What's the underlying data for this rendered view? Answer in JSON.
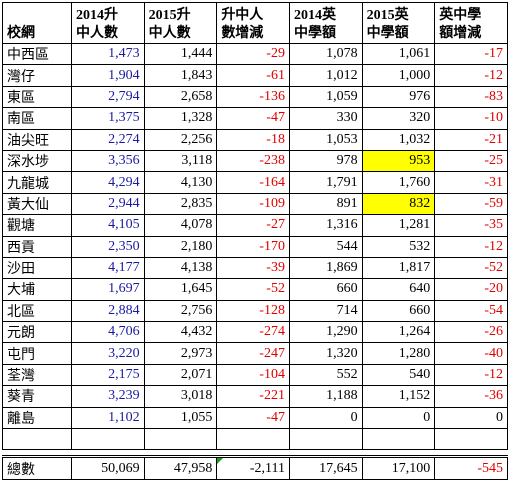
{
  "table": {
    "header": [
      [
        "校網"
      ],
      [
        "2014升",
        "中人數"
      ],
      [
        "2015升",
        "中人數"
      ],
      [
        "升中人",
        "數增減"
      ],
      [
        "2014英",
        "中學額"
      ],
      [
        "2015英",
        "中學額"
      ],
      [
        "英中學",
        "額增減"
      ]
    ],
    "rows": [
      [
        "中西區",
        "1,473",
        "1,444",
        "-29",
        "1,078",
        "1,061",
        "-17"
      ],
      [
        "灣仔",
        "1,904",
        "1,843",
        "-61",
        "1,012",
        "1,000",
        "-12"
      ],
      [
        "東區",
        "2,794",
        "2,658",
        "-136",
        "1,059",
        "976",
        "-83"
      ],
      [
        "南區",
        "1,375",
        "1,328",
        "-47",
        "330",
        "320",
        "-10"
      ],
      [
        "油尖旺",
        "2,274",
        "2,256",
        "-18",
        "1,053",
        "1,032",
        "-21"
      ],
      [
        "深水埗",
        "3,356",
        "3,118",
        "-238",
        "978",
        "953",
        "-25"
      ],
      [
        "九龍城",
        "4,294",
        "4,130",
        "-164",
        "1,791",
        "1,760",
        "-31"
      ],
      [
        "黃大仙",
        "2,944",
        "2,835",
        "-109",
        "891",
        "832",
        "-59"
      ],
      [
        "觀塘",
        "4,105",
        "4,078",
        "-27",
        "1,316",
        "1,281",
        "-35"
      ],
      [
        "西貢",
        "2,350",
        "2,180",
        "-170",
        "544",
        "532",
        "-12"
      ],
      [
        "沙田",
        "4,177",
        "4,138",
        "-39",
        "1,869",
        "1,817",
        "-52"
      ],
      [
        "大埔",
        "1,697",
        "1,645",
        "-52",
        "660",
        "640",
        "-20"
      ],
      [
        "北區",
        "2,884",
        "2,756",
        "-128",
        "714",
        "660",
        "-54"
      ],
      [
        "元朗",
        "4,706",
        "4,432",
        "-274",
        "1,290",
        "1,264",
        "-26"
      ],
      [
        "屯門",
        "3,220",
        "2,973",
        "-247",
        "1,320",
        "1,280",
        "-40"
      ],
      [
        "荃灣",
        "2,175",
        "2,071",
        "-104",
        "552",
        "540",
        "-12"
      ],
      [
        "葵青",
        "3,239",
        "3,018",
        "-221",
        "1,188",
        "1,152",
        "-36"
      ],
      [
        "離島",
        "1,102",
        "1,055",
        "-47",
        "0",
        "0",
        "0"
      ]
    ],
    "total": [
      "總數",
      "50,069",
      "47,958",
      "-2,111",
      "17,645",
      "17,100",
      "-545"
    ]
  }
}
